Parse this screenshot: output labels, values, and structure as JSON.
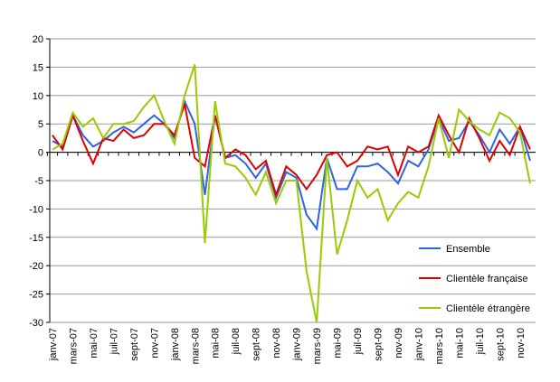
{
  "chart_data": {
    "type": "line",
    "categories": [
      "janv-07",
      null,
      "mars-07",
      null,
      "mai-07",
      null,
      "juil-07",
      null,
      "sept-07",
      null,
      "nov-07",
      null,
      "janv-08",
      null,
      "mars-08",
      null,
      "mai-08",
      null,
      "juil-08",
      null,
      "sept-08",
      null,
      "nov-08",
      null,
      "janv-09",
      null,
      "mars-09",
      null,
      "mai-09",
      null,
      "juil-09",
      null,
      "sept-09",
      null,
      "nov-09",
      null,
      "janv-10",
      null,
      "mars-10",
      null,
      "mai-10",
      null,
      "juil-10",
      null,
      "sept-10",
      null,
      "nov-10",
      null
    ],
    "series": [
      {
        "name": "Ensemble",
        "color": "#2f62e6",
        "values": [
          2,
          1,
          6.5,
          3,
          1,
          2,
          3.5,
          4.5,
          3.5,
          5,
          6.5,
          5,
          2.5,
          9,
          5,
          -7.5,
          6.5,
          -1,
          -0.5,
          -2,
          -4.5,
          -2,
          -8,
          -3.5,
          -4.5,
          -11,
          -13.5,
          -1,
          -6.5,
          -6.5,
          -2.5,
          -2.5,
          -2,
          -3.5,
          -5.5,
          -1.5,
          -2.5,
          0.5,
          6,
          2,
          2.5,
          5.5,
          3,
          0,
          4,
          1.5,
          4.5,
          -1.5
        ]
      },
      {
        "name": "Clientèle française",
        "color": "#e00000",
        "values": [
          3,
          0.5,
          6.5,
          2,
          -2,
          2.5,
          2,
          4,
          2.5,
          3,
          5,
          5,
          3,
          8.5,
          -1,
          -2.5,
          6.5,
          -1,
          0.5,
          -0.5,
          -3,
          -1.5,
          -7.5,
          -2.5,
          -4,
          -6.5,
          -4,
          -0.5,
          0,
          -2.5,
          -1.5,
          1,
          0.5,
          1,
          -4,
          1,
          0,
          1,
          6.5,
          3,
          0,
          6,
          2.5,
          -1.5,
          2,
          -0.5,
          4.5,
          0.5
        ]
      },
      {
        "name": "Clientèle étrangère",
        "color": "#99cc00",
        "values": [
          0.5,
          1.5,
          7,
          4.5,
          6,
          2.5,
          5,
          5,
          5.5,
          8,
          10,
          5.5,
          1.5,
          10,
          15.5,
          -16,
          9,
          -2,
          -2.5,
          -4.5,
          -7.5,
          -3.5,
          -9,
          -5,
          -5,
          -21,
          -30,
          -1,
          -18,
          -12,
          -5,
          -8,
          -6.5,
          -12,
          -9,
          -7,
          -8,
          -2.5,
          6,
          -1,
          7.5,
          5.5,
          4,
          3,
          7,
          6,
          3.5,
          -5.5
        ]
      }
    ],
    "ylim": [
      -30,
      20
    ],
    "yticks": [
      -30,
      -25,
      -20,
      -15,
      -10,
      -5,
      0,
      5,
      10,
      15,
      20
    ],
    "grid": true,
    "legend": "lower right"
  }
}
